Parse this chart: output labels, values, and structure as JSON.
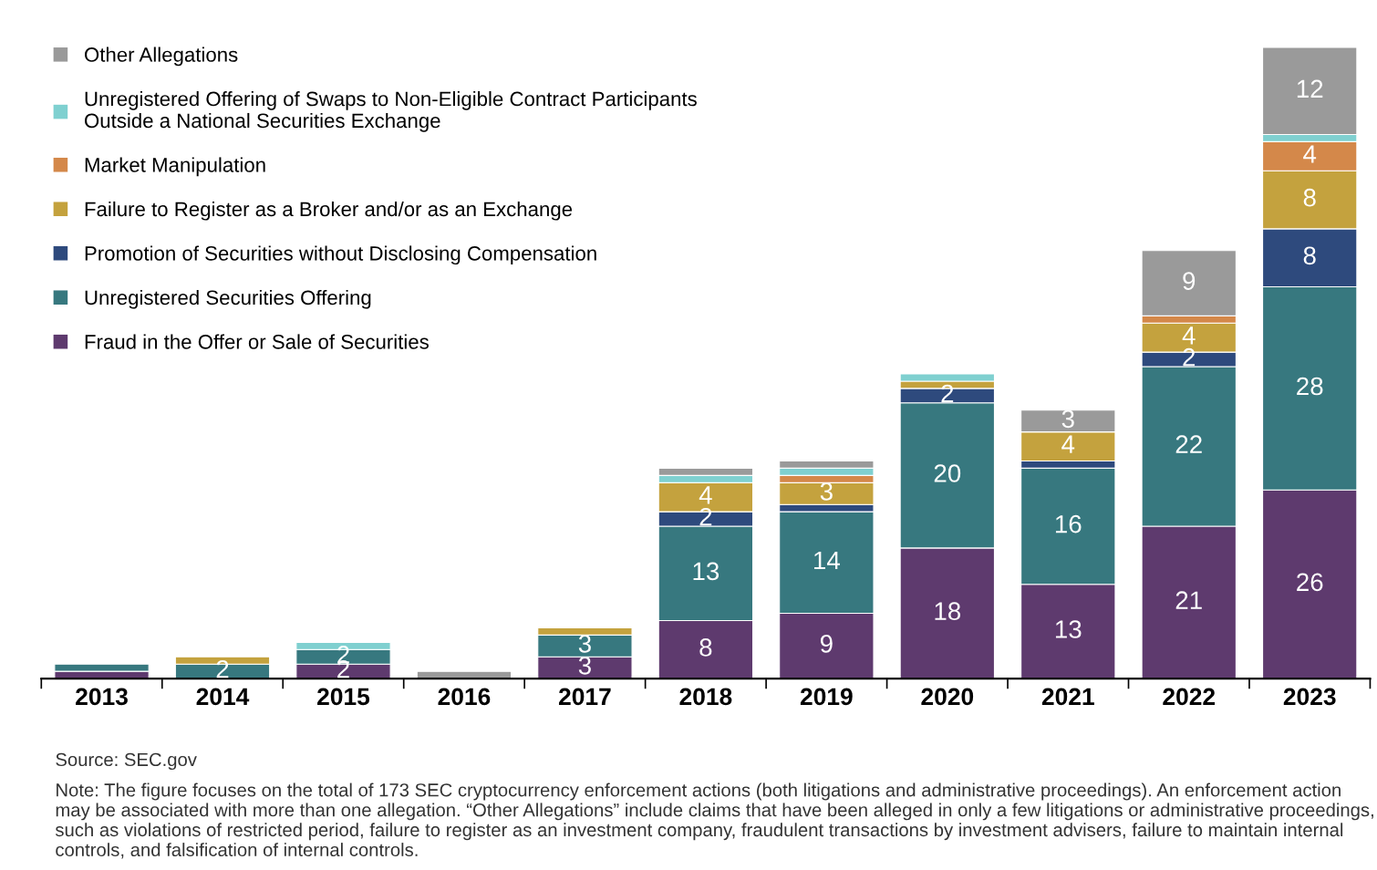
{
  "chart_data": {
    "type": "bar",
    "stacked": true,
    "legend": "top left",
    "grid": false,
    "categories": [
      "2013",
      "2014",
      "2015",
      "2016",
      "2017",
      "2018",
      "2019",
      "2020",
      "2021",
      "2022",
      "2023"
    ],
    "series": [
      {
        "name": "Fraud in the Offer or Sale of Securities",
        "color": "#5e3a6e",
        "values": [
          1,
          0,
          2,
          0,
          3,
          8,
          9,
          18,
          13,
          21,
          26
        ],
        "value_labels": [
          null,
          null,
          "2",
          null,
          "3",
          "8",
          "9",
          "18",
          "13",
          "21",
          "26"
        ]
      },
      {
        "name": "Unregistered Securities Offering",
        "color": "#37787f",
        "values": [
          1,
          2,
          2,
          0,
          3,
          13,
          14,
          20,
          16,
          22,
          28
        ],
        "value_labels": [
          null,
          "2",
          "2",
          null,
          "3",
          "13",
          "14",
          "20",
          "16",
          "22",
          "28"
        ]
      },
      {
        "name": "Promotion of Securities without Disclosing Compensation",
        "color": "#2e4a7d",
        "values": [
          0,
          0,
          0,
          0,
          0,
          2,
          1,
          2,
          1,
          2,
          8
        ],
        "value_labels": [
          null,
          null,
          null,
          null,
          null,
          "2",
          null,
          "2",
          null,
          "2",
          "8"
        ]
      },
      {
        "name": "Failure to Register as a Broker and/or as an Exchange",
        "color": "#c4a23e",
        "values": [
          0,
          1,
          0,
          0,
          1,
          4,
          3,
          1,
          4,
          4,
          8
        ],
        "value_labels": [
          null,
          null,
          null,
          null,
          null,
          "4",
          "3",
          null,
          "4",
          "4",
          "8"
        ]
      },
      {
        "name": "Market Manipulation",
        "color": "#d4884a",
        "values": [
          0,
          0,
          0,
          0,
          0,
          0,
          1,
          0,
          0,
          1,
          4
        ],
        "value_labels": [
          null,
          null,
          null,
          null,
          null,
          null,
          null,
          null,
          null,
          null,
          "4"
        ]
      },
      {
        "name": "Unregistered Offering of Swaps to Non-Eligible Contract Participants\nOutside a National Securities Exchange",
        "color": "#7fd0d0",
        "values": [
          0,
          0,
          1,
          0,
          0,
          1,
          1,
          1,
          0,
          0,
          1
        ],
        "value_labels": [
          null,
          null,
          null,
          null,
          null,
          null,
          null,
          null,
          null,
          null,
          null
        ]
      },
      {
        "name": "Other Allegations",
        "color": "#9a9a9a",
        "values": [
          0,
          0,
          0,
          1,
          0,
          1,
          1,
          0,
          3,
          9,
          12
        ],
        "value_labels": [
          null,
          null,
          null,
          null,
          null,
          null,
          null,
          null,
          "3",
          "9",
          "12"
        ]
      }
    ],
    "annotations": [
      "Source: SEC.gov",
      "Note: The figure focuses on the total of 173 SEC cryptocurrency enforcement actions (both litigations and administrative proceedings). An enforcement action may be associated with more than one allegation. “Other Allegations” include claims that have been alleged in only a few litigations or administrative proceedings, such as violations of restricted period, failure to register as an investment company, fraudulent transactions by investment advisers, failure to maintain internal controls, and falsification of internal controls."
    ]
  }
}
